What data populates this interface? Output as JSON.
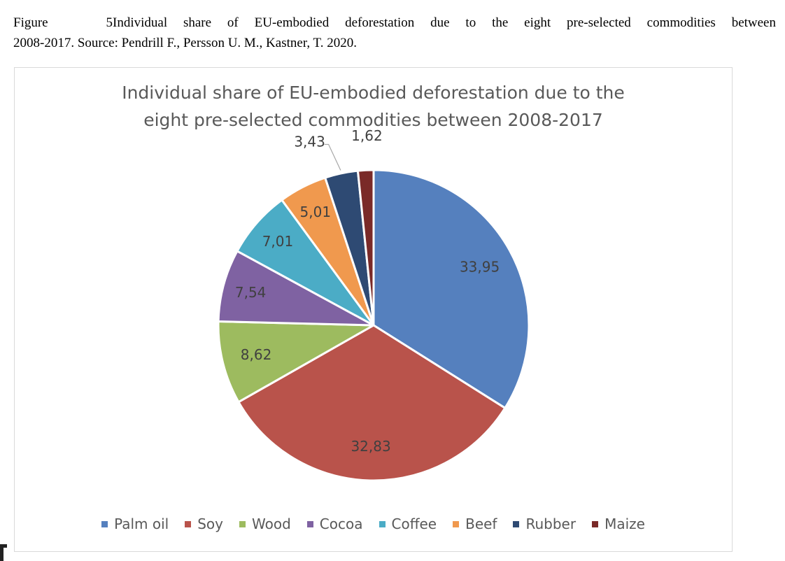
{
  "caption": {
    "figure_label": "Figure 5",
    "text_line1": "Individual share of EU-embodied deforestation due to the eight pre-selected commodities between",
    "text_line2": "2008-2017. Source: Pendrill F., Persson U. M., Kastner, T. 2020."
  },
  "chart_data": {
    "type": "pie",
    "title_line1": "Individual share of EU-embodied deforestation due to the",
    "title_line2": "eight pre-selected commodities between 2008-2017",
    "categories": [
      "Palm oil",
      "Soy",
      "Wood",
      "Cocoa",
      "Coffee",
      "Beef",
      "Rubber",
      "Maize"
    ],
    "values": [
      33.95,
      32.83,
      8.62,
      7.54,
      7.01,
      5.01,
      3.43,
      1.62
    ],
    "labels": [
      "33,95",
      "32,83",
      "8,62",
      "7,54",
      "7,01",
      "5,01",
      "3,43",
      "1,62"
    ],
    "colors": [
      "#5580be",
      "#b9534b",
      "#9dbb5f",
      "#7f62a2",
      "#4bacc6",
      "#f0994e",
      "#2e4a73",
      "#7a2a28"
    ],
    "label_color": "#404040",
    "legend_position": "bottom"
  }
}
